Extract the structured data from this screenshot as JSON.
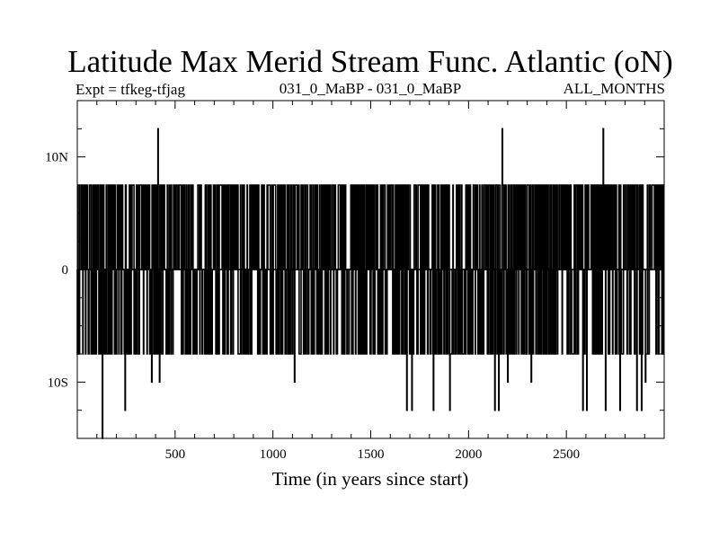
{
  "chart_data": {
    "type": "line",
    "title": "Latitude Max Merid Stream Func. Atlantic (oN)",
    "subtitle_left": "Expt = tfkeg-tfjag",
    "subtitle_center": "031_0_MaBP - 031_0_MaBP",
    "subtitle_right": "ALL_MONTHS",
    "xlabel": "Time (in years since start)",
    "ylabel": "",
    "xlim": [
      0,
      3000
    ],
    "ylim": [
      -15,
      15
    ],
    "x_ticks": [
      {
        "value": 500,
        "label": "500"
      },
      {
        "value": 1000,
        "label": "1000"
      },
      {
        "value": 1500,
        "label": "1500"
      },
      {
        "value": 2000,
        "label": "2000"
      },
      {
        "value": 2500,
        "label": "2500"
      }
    ],
    "y_ticks": [
      {
        "value": 10,
        "label": "10N"
      },
      {
        "value": 0,
        "label": "0"
      },
      {
        "value": -10,
        "label": "10S"
      }
    ],
    "typical_high": 7.5,
    "typical_low": -7.5,
    "spikes": [
      {
        "x": 413,
        "y": 12.5
      },
      {
        "x": 2172,
        "y": 12.5
      },
      {
        "x": 2688,
        "y": 12.5
      },
      {
        "x": 128,
        "y": -15
      },
      {
        "x": 245,
        "y": -12.5
      },
      {
        "x": 380,
        "y": -10
      },
      {
        "x": 420,
        "y": -10
      },
      {
        "x": 1110,
        "y": -10
      },
      {
        "x": 1685,
        "y": -12.5
      },
      {
        "x": 1710,
        "y": -12.5
      },
      {
        "x": 1820,
        "y": -12.5
      },
      {
        "x": 1905,
        "y": -12.5
      },
      {
        "x": 2135,
        "y": -12.5
      },
      {
        "x": 2155,
        "y": -12.5
      },
      {
        "x": 2200,
        "y": -10
      },
      {
        "x": 2320,
        "y": -10
      },
      {
        "x": 2585,
        "y": -12.5
      },
      {
        "x": 2605,
        "y": -12.5
      },
      {
        "x": 2700,
        "y": -12.5
      },
      {
        "x": 2775,
        "y": -12.5
      },
      {
        "x": 2860,
        "y": -12.5
      },
      {
        "x": 2885,
        "y": -12.5
      },
      {
        "x": 2905,
        "y": -10
      }
    ],
    "grid": false,
    "series_color": "#000000"
  }
}
